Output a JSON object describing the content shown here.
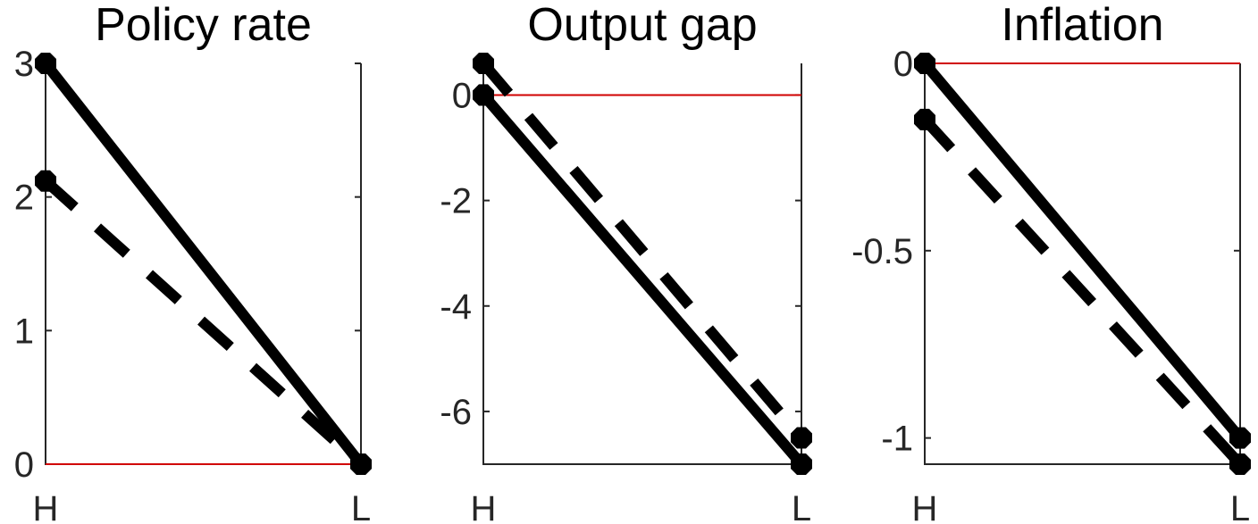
{
  "colors": {
    "series": "#000000",
    "reference_line": "#d00000",
    "axes": "#262626"
  },
  "chart_data": [
    {
      "type": "line",
      "title": "Policy rate",
      "categories": [
        "H",
        "L"
      ],
      "ylim": [
        0,
        3
      ],
      "yticks": [
        0,
        1,
        2,
        3
      ],
      "ytick_labels": [
        "0",
        "1",
        "2",
        "3"
      ],
      "reference_line": 0,
      "series": [
        {
          "style": "solid",
          "values": [
            3.0,
            0.0
          ]
        },
        {
          "style": "dashed",
          "values": [
            2.12,
            0.0
          ]
        }
      ]
    },
    {
      "type": "line",
      "title": "Output gap",
      "categories": [
        "H",
        "L"
      ],
      "ylim": [
        -7.0,
        0.6
      ],
      "yticks": [
        -6,
        -4,
        -2,
        0
      ],
      "ytick_labels": [
        "-6",
        "-4",
        "-2",
        "0"
      ],
      "reference_line": 0,
      "series": [
        {
          "style": "solid",
          "values": [
            0.0,
            -7.0
          ]
        },
        {
          "style": "dashed",
          "values": [
            0.6,
            -6.5
          ]
        }
      ]
    },
    {
      "type": "line",
      "title": "Inflation",
      "categories": [
        "H",
        "L"
      ],
      "ylim": [
        -1.07,
        0
      ],
      "yticks": [
        -1,
        -0.5,
        0
      ],
      "ytick_labels": [
        "-1",
        "-0.5",
        "0"
      ],
      "reference_line": 0,
      "series": [
        {
          "style": "solid",
          "values": [
            0.0,
            -1.0
          ]
        },
        {
          "style": "dashed",
          "values": [
            -0.15,
            -1.07
          ]
        }
      ]
    }
  ]
}
